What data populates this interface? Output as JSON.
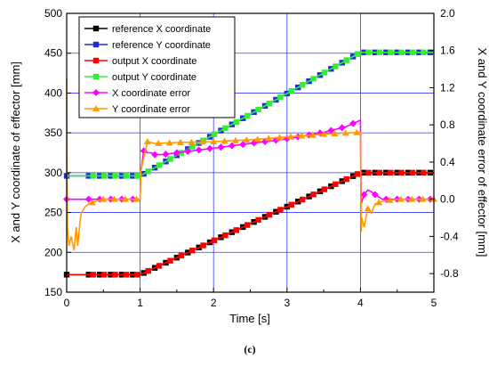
{
  "chart_data": {
    "type": "line",
    "title": "",
    "caption": "(c)",
    "xlabel": "Time [s]",
    "ylabel_left": "X and Y coordinate of effector [mm]",
    "ylabel_right": "X and Y coordinate error of effector [mm]",
    "xlim": [
      0,
      5
    ],
    "ylim_left": [
      150,
      500
    ],
    "ylim_right": [
      -1.0,
      2.0
    ],
    "x_ticks": [
      "0",
      "1",
      "2",
      "3",
      "4",
      "5"
    ],
    "y_left_ticks": [
      "150",
      "200",
      "250",
      "300",
      "350",
      "400",
      "450",
      "500"
    ],
    "y_right_ticks": [
      "-0.8",
      "-0.4",
      "0.0",
      "0.4",
      "0.8",
      "1.2",
      "1.6",
      "2.0"
    ],
    "grid": true,
    "legend_position": "top-left",
    "colors": {
      "reference_x": "#000000",
      "reference_y": "#1f2fd6",
      "output_x": "#ff0000",
      "output_y": "#33ee33",
      "x_error": "#ff00ff",
      "y_error": "#ff9900",
      "grid": "#3a3aff"
    },
    "series": [
      {
        "key": "reference_x",
        "name": "reference X coordinate",
        "axis": "left",
        "marker": "square",
        "x": [
          0,
          1,
          4,
          5
        ],
        "y": [
          172,
          172,
          300,
          300
        ]
      },
      {
        "key": "reference_y",
        "name": "reference Y coordinate",
        "axis": "left",
        "marker": "square",
        "x": [
          0,
          1,
          4,
          5
        ],
        "y": [
          296,
          296,
          451,
          451
        ]
      },
      {
        "key": "output_x",
        "name": "output X coordinate",
        "axis": "left",
        "marker": "square",
        "x": [
          0,
          1,
          4,
          5
        ],
        "y": [
          172,
          172,
          300,
          300
        ]
      },
      {
        "key": "output_y",
        "name": "output Y coordinate",
        "axis": "left",
        "marker": "square",
        "x": [
          0,
          1,
          4,
          5
        ],
        "y": [
          296,
          296,
          451,
          451
        ]
      },
      {
        "key": "x_error",
        "name": "X coordinate error",
        "axis": "right",
        "marker": "diamond",
        "x": [
          0,
          0.05,
          1.0,
          1.01,
          1.05,
          1.1,
          1.15,
          1.2,
          1.3,
          1.5,
          1.7,
          2.0,
          2.5,
          3.0,
          3.5,
          3.8,
          4.0,
          4.01,
          4.05,
          4.1,
          4.15,
          4.2,
          4.3,
          4.5,
          5.0
        ],
        "y": [
          0.0,
          0.0,
          0.0,
          0.3,
          0.52,
          0.5,
          0.5,
          0.48,
          0.48,
          0.5,
          0.52,
          0.55,
          0.6,
          0.65,
          0.72,
          0.78,
          0.85,
          -0.05,
          0.05,
          0.1,
          0.08,
          0.05,
          0.0,
          0.0,
          0.0
        ]
      },
      {
        "key": "y_error",
        "name": "Y coordinate error",
        "axis": "right",
        "marker": "triangle",
        "x": [
          0,
          0.01,
          0.03,
          0.06,
          0.1,
          0.13,
          0.15,
          0.18,
          0.2,
          0.25,
          0.3,
          0.4,
          0.5,
          0.7,
          1.0,
          1.01,
          1.05,
          1.1,
          1.2,
          1.5,
          2.0,
          2.5,
          3.0,
          3.5,
          4.0,
          4.01,
          4.02,
          4.05,
          4.1,
          4.15,
          4.2,
          4.3,
          4.5,
          5.0
        ],
        "y": [
          1.3,
          -0.3,
          -0.5,
          -0.4,
          -0.55,
          -0.3,
          -0.5,
          -0.25,
          -0.15,
          -0.08,
          -0.05,
          -0.02,
          0.0,
          0.0,
          0.0,
          0.3,
          0.45,
          0.62,
          0.6,
          0.61,
          0.62,
          0.64,
          0.67,
          0.7,
          0.72,
          -0.35,
          -0.2,
          -0.3,
          -0.1,
          -0.15,
          -0.05,
          -0.02,
          0.0,
          0.0
        ]
      }
    ]
  }
}
